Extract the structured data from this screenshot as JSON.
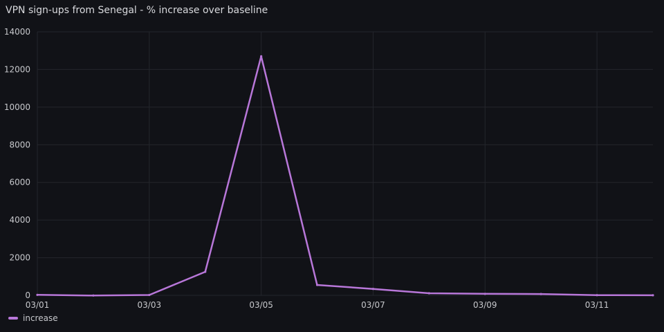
{
  "panel": {
    "title": "VPN sign-ups from Senegal - % increase over baseline"
  },
  "colors": {
    "background": "#111217",
    "series": "#b877d9",
    "grid": "#24262c",
    "text": "#c7c8cc"
  },
  "chart_data": {
    "type": "line",
    "title": "VPN sign-ups from Senegal - % increase over baseline",
    "xlabel": "",
    "ylabel": "",
    "x": [
      "03/01",
      "03/02",
      "03/03",
      "03/04",
      "03/05",
      "03/06",
      "03/07",
      "03/08",
      "03/09",
      "03/10",
      "03/11",
      "03/12"
    ],
    "x_tick_labels": [
      "03/01",
      "03/03",
      "03/05",
      "03/07",
      "03/09",
      "03/11"
    ],
    "y_tick_labels": [
      "0",
      "2000",
      "4000",
      "6000",
      "8000",
      "10000",
      "12000",
      "14000"
    ],
    "ylim": [
      0,
      14000
    ],
    "grid": true,
    "legend_position": "bottom-left",
    "series": [
      {
        "name": "increase",
        "values": [
          25,
          -10,
          20,
          1250,
          12700,
          550,
          340,
          110,
          80,
          70,
          10,
          5
        ]
      }
    ]
  }
}
